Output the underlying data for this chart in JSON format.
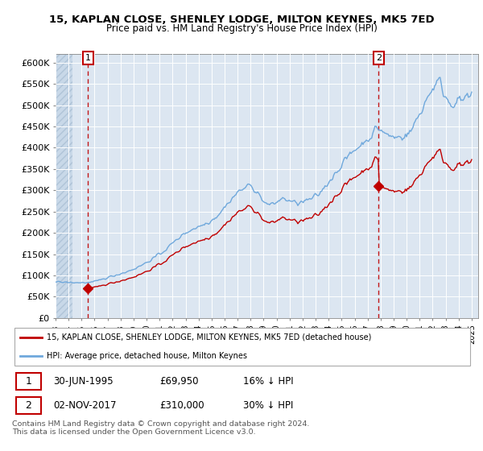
{
  "title1": "15, KAPLAN CLOSE, SHENLEY LODGE, MILTON KEYNES, MK5 7ED",
  "title2": "Price paid vs. HM Land Registry's House Price Index (HPI)",
  "ylim": [
    0,
    620000
  ],
  "yticks": [
    0,
    50000,
    100000,
    150000,
    200000,
    250000,
    300000,
    350000,
    400000,
    450000,
    500000,
    550000,
    600000
  ],
  "ytick_labels": [
    "£0",
    "£50K",
    "£100K",
    "£150K",
    "£200K",
    "£250K",
    "£300K",
    "£350K",
    "£400K",
    "£450K",
    "£500K",
    "£550K",
    "£600K"
  ],
  "xlim_start": 1993.0,
  "xlim_end": 2025.5,
  "purchase1_date": 1995.49,
  "purchase1_price": 69950,
  "purchase2_date": 2017.84,
  "purchase2_price": 310000,
  "legend_line1": "15, KAPLAN CLOSE, SHENLEY LODGE, MILTON KEYNES, MK5 7ED (detached house)",
  "legend_line2": "HPI: Average price, detached house, Milton Keynes",
  "note1_date": "30-JUN-1995",
  "note1_price": "£69,950",
  "note1_hpi": "16% ↓ HPI",
  "note2_date": "02-NOV-2017",
  "note2_price": "£310,000",
  "note2_hpi": "30% ↓ HPI",
  "footer": "Contains HM Land Registry data © Crown copyright and database right 2024.\nThis data is licensed under the Open Government Licence v3.0.",
  "hpi_color": "#6fa8dc",
  "price_color": "#c00000",
  "bg_plot": "#dce6f1",
  "grid_color": "#ffffff",
  "annot_box_color": "#c00000"
}
